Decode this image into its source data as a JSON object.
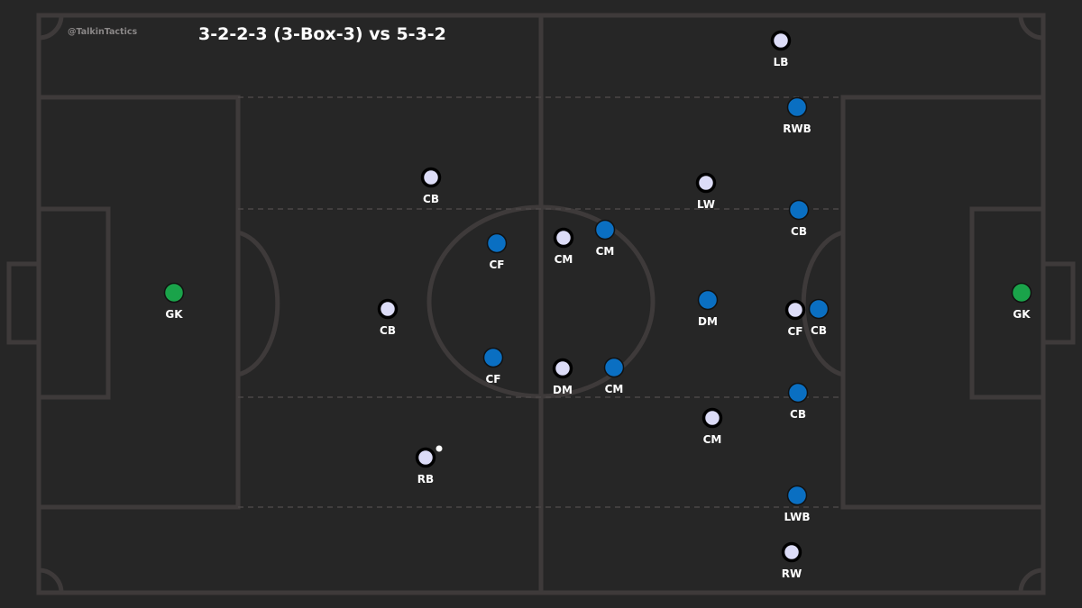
{
  "title": "3-2-2-3 (3-Box-3) vs 5-3-2",
  "handle": "@TalkinTactics",
  "colors": {
    "background": "#262626",
    "pitch_lines": "#3e3a3a",
    "team_white": "#dcdcf7",
    "team_blue": "#0a6fc2",
    "goalkeeper": "#1aa34a",
    "ball": "#ffffff"
  },
  "team_white": {
    "players": [
      "LB",
      "LW",
      "CB",
      "CM",
      "CB",
      "CF",
      "DM",
      "CM",
      "RB",
      "RW"
    ]
  },
  "team_blue": {
    "players": [
      "RWB",
      "CB",
      "CM",
      "CF",
      "DM",
      "CB",
      "CF",
      "CM",
      "CB",
      "LWB"
    ]
  },
  "goalkeepers": [
    "GK",
    "GK"
  ]
}
